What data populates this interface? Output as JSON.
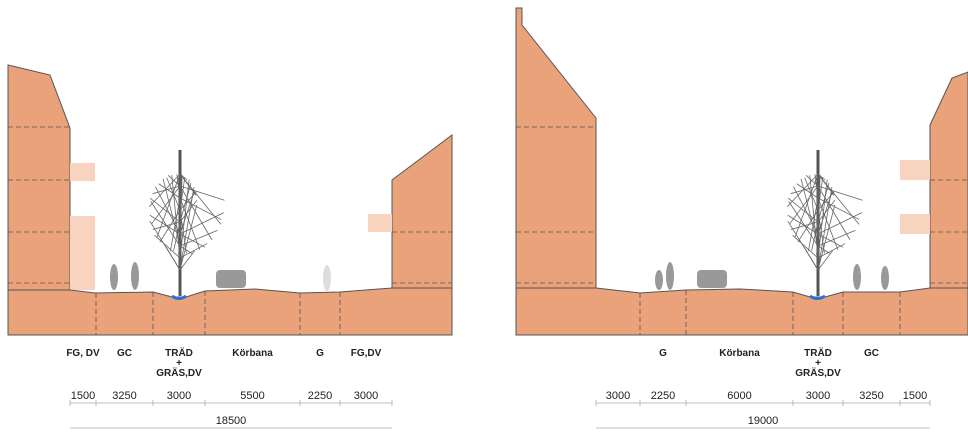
{
  "sections": [
    {
      "zones": [
        {
          "label": [
            "FG, DV"
          ],
          "width": 1500
        },
        {
          "label": [
            "GC"
          ],
          "width": 3250
        },
        {
          "label": [
            "TRÄD",
            "+",
            "GRÄS,DV"
          ],
          "width": 3000
        },
        {
          "label": [
            "Körbana"
          ],
          "width": 5500
        },
        {
          "label": [
            "G"
          ],
          "width": 2250
        },
        {
          "label": [
            "FG,DV"
          ],
          "width": 3000
        }
      ],
      "total": 18500
    },
    {
      "zones": [
        {
          "width": 3000
        },
        {
          "label": [
            "G"
          ],
          "width": 2250
        },
        {
          "label": [
            "Körbana"
          ],
          "width": 6000
        },
        {
          "label": [
            "TRÄD",
            "+",
            "GRÄS,DV"
          ],
          "width": 3000
        },
        {
          "label": [
            "GC"
          ],
          "width": 3250
        },
        {
          "width": 1500
        }
      ],
      "total": 19000
    }
  ]
}
